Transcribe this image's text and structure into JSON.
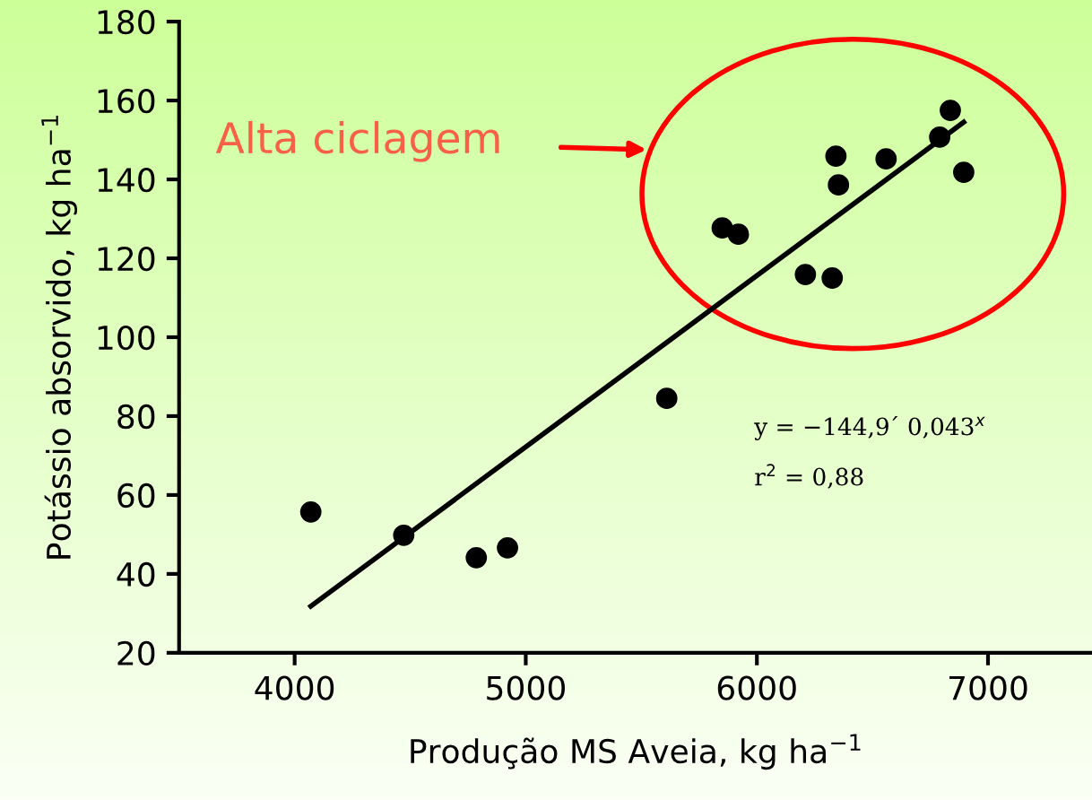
{
  "chart_data": {
    "type": "scatter",
    "xlabel": "Produção MS Aveia, kg ha$^{−1}$",
    "ylabel": "Potássio absorvido, kg ha$^{−1}$",
    "x": [
      4070,
      4472,
      4786,
      4921,
      5610,
      5850,
      5920,
      6210,
      6326,
      6342,
      6353,
      6559,
      6791,
      6837,
      6895
    ],
    "series": [
      {
        "color": "#000000",
        "marker": "circle",
        "values": [
          55.7,
          49.8,
          44.1,
          46.6,
          84.5,
          127.7,
          126.1,
          115.9,
          115,
          145.9,
          138.6,
          145.2,
          150.7,
          157.5,
          141.8
        ]
      },
      {
        "type": "line",
        "color": "#000000",
        "x": [
          4070,
          6895
        ],
        "values": [
          31.8,
          154.5
        ]
      }
    ],
    "xlim": [
      3500,
      7450
    ],
    "ylim": [
      20,
      180
    ],
    "xticks": [
      4000,
      5000,
      6000,
      7000
    ],
    "yticks": [
      20,
      40,
      60,
      80,
      100,
      120,
      140,
      160,
      180
    ],
    "grid": false,
    "legend": false,
    "annotations": [
      "Alta ciclagem",
      "y = −144,9´ 0,043$^{x}$",
      "r$^{2}$ = 0,88"
    ]
  }
}
